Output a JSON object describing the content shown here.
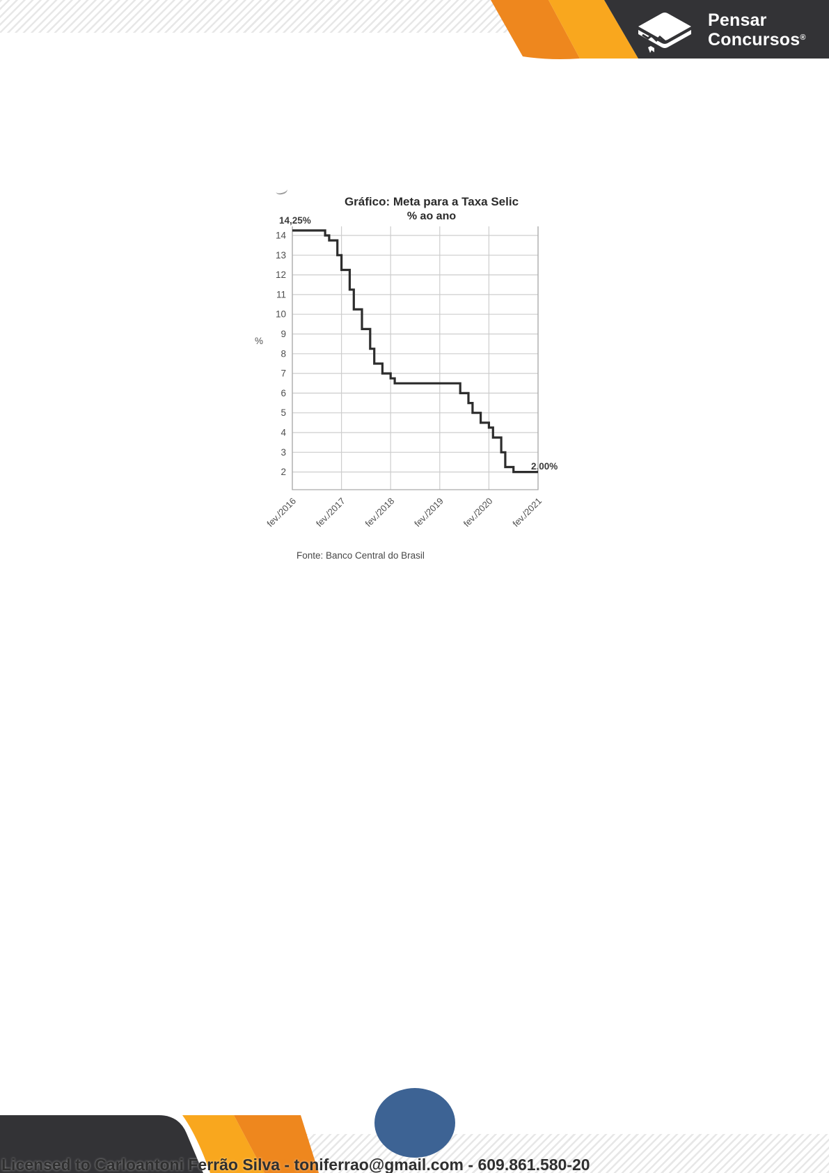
{
  "header": {
    "brand": {
      "line1": "Pensar",
      "line2": "Concursos",
      "registered": "®"
    }
  },
  "chart_data": {
    "type": "line",
    "line_style": "step-after",
    "title": "Gráfico: Meta para a Taxa Selic",
    "subtitle": "% ao ano",
    "ylabel": "%",
    "y_ticks": [
      2,
      3,
      4,
      5,
      6,
      7,
      8,
      9,
      10,
      11,
      12,
      13,
      14
    ],
    "ylim": [
      1.1,
      14.75
    ],
    "x_tick_labels": [
      "fev./2016",
      "fev./2017",
      "fev./2018",
      "fev./2019",
      "fev./2020",
      "fev./2021"
    ],
    "grid": true,
    "legend": "none",
    "annotations": {
      "start": "14,25%",
      "end": "2,00%"
    },
    "source": "Fonte: Banco Central do Brasil",
    "series": [
      {
        "name": "Meta para a Taxa Selic (% ao ano)",
        "x_monthly_from": "fev./2016",
        "x_monthly_to": "fev./2021",
        "values": [
          14.25,
          14.25,
          14.25,
          14.25,
          14.25,
          14.25,
          14.25,
          14.25,
          14.0,
          13.75,
          13.75,
          13.0,
          12.25,
          12.25,
          11.25,
          10.25,
          10.25,
          9.25,
          9.25,
          8.25,
          7.5,
          7.5,
          7.0,
          7.0,
          6.75,
          6.5,
          6.5,
          6.5,
          6.5,
          6.5,
          6.5,
          6.5,
          6.5,
          6.5,
          6.5,
          6.5,
          6.5,
          6.5,
          6.5,
          6.5,
          6.5,
          6.0,
          6.0,
          5.5,
          5.0,
          5.0,
          4.5,
          4.5,
          4.25,
          3.75,
          3.75,
          3.0,
          2.25,
          2.25,
          2.0,
          2.0,
          2.0,
          2.0,
          2.0,
          2.0,
          2.0
        ]
      }
    ]
  },
  "footer": {
    "license_text": "Licensed to Carloantoni Ferrão Silva - toniferrao@gmail.com - 609.861.580-20"
  },
  "colors": {
    "banner_charcoal": "#333336",
    "orange_dark": "#EE871E",
    "amber": "#F9A71E",
    "blue_ellipse": "#3D6394",
    "grid_line": "#cdcdcd",
    "axis_line": "#aaaaaa",
    "axis_text": "#4d4d4d",
    "series_line": "#2d2d2d"
  }
}
